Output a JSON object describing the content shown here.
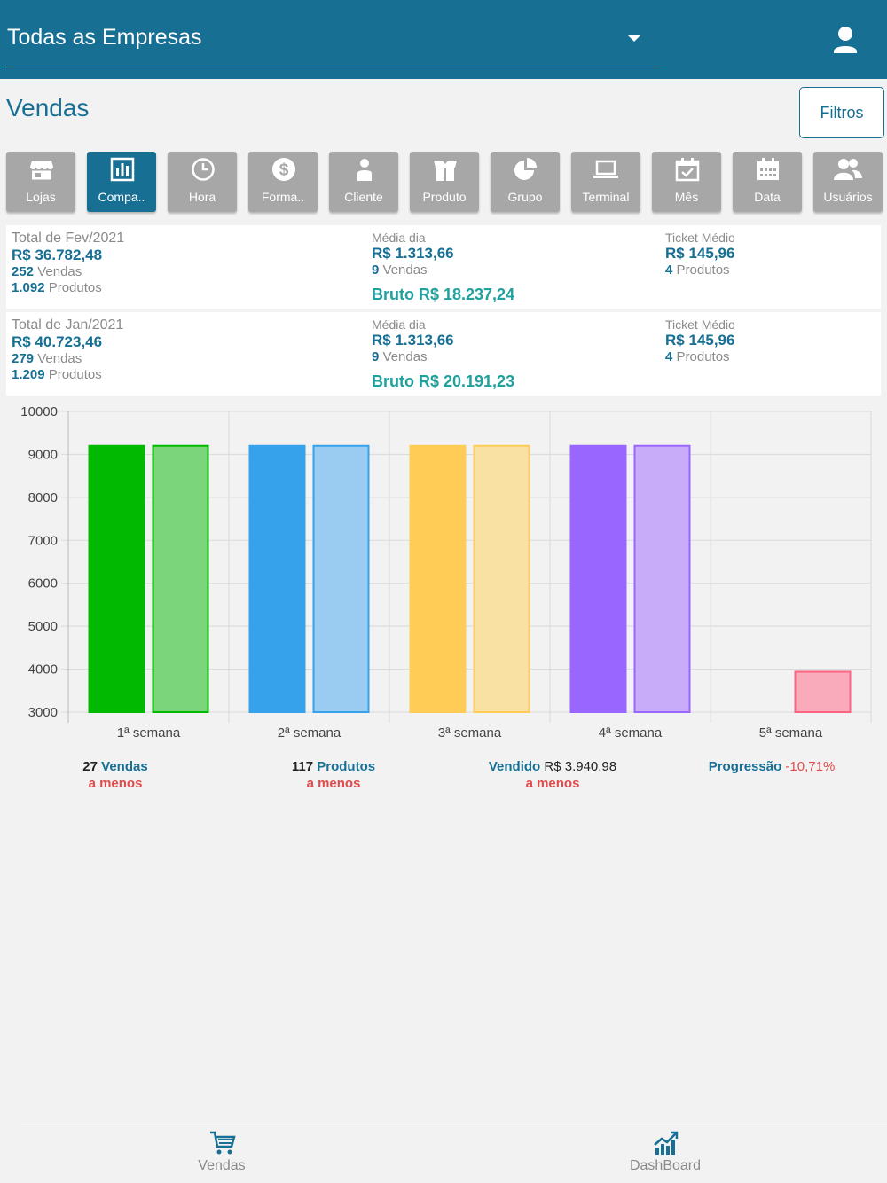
{
  "header": {
    "company": "Todas as Empresas",
    "icons": {
      "dropdown": "caret-down-icon",
      "user": "user-icon"
    },
    "colors": {
      "primary": "#176f94",
      "tab_inactive": "#a7a7a7",
      "accent_green": "#20a19d",
      "negative": "#e14b4b"
    }
  },
  "page": {
    "title": "Vendas",
    "filters_label": "Filtros"
  },
  "tabs": [
    {
      "label": "Lojas",
      "icon": "store-icon",
      "active": false
    },
    {
      "label": "Compa..",
      "icon": "bar-chart-icon",
      "active": true
    },
    {
      "label": "Hora",
      "icon": "clock-icon",
      "active": false
    },
    {
      "label": "Forma..",
      "icon": "dollar-icon",
      "active": false
    },
    {
      "label": "Cliente",
      "icon": "person-icon",
      "active": false
    },
    {
      "label": "Produto",
      "icon": "box-icon",
      "active": false
    },
    {
      "label": "Grupo",
      "icon": "pie-chart-icon",
      "active": false
    },
    {
      "label": "Terminal",
      "icon": "laptop-icon",
      "active": false
    },
    {
      "label": "Mês",
      "icon": "calendar-check-icon",
      "active": false
    },
    {
      "label": "Data",
      "icon": "calendar-icon",
      "active": false
    },
    {
      "label": "Usuários",
      "icon": "users-icon",
      "active": false
    }
  ],
  "summaries": [
    {
      "title": "Total de Fev/2021",
      "total": "R$ 36.782,48",
      "vendas_count": "252",
      "vendas_label": "Vendas",
      "produtos_count": "1.092",
      "produtos_label": "Produtos",
      "media_label": "Média dia",
      "media_value": "R$ 1.313,66",
      "media_vendas_count": "9",
      "media_vendas_label": "Vendas",
      "bruto": "Bruto R$ 18.237,24",
      "ticket_label": "Ticket Médio",
      "ticket_value": "R$ 145,96",
      "ticket_produtos_count": "4",
      "ticket_produtos_label": "Produtos"
    },
    {
      "title": "Total de Jan/2021",
      "total": "R$ 40.723,46",
      "vendas_count": "279",
      "vendas_label": "Vendas",
      "produtos_count": "1.209",
      "produtos_label": "Produtos",
      "media_label": "Média dia",
      "media_value": "R$ 1.313,66",
      "media_vendas_count": "9",
      "media_vendas_label": "Vendas",
      "bruto": "Bruto R$ 20.191,23",
      "ticket_label": "Ticket Médio",
      "ticket_value": "R$ 145,96",
      "ticket_produtos_count": "4",
      "ticket_produtos_label": "Produtos"
    }
  ],
  "chart_data": {
    "type": "bar",
    "categories": [
      "1ª semana",
      "2ª semana",
      "3ª semana",
      "4ª semana",
      "5ª semana"
    ],
    "series": [
      {
        "values": [
          9200,
          9200,
          9200,
          9200,
          null
        ]
      },
      {
        "values": [
          9200,
          9200,
          9200,
          9200,
          3940
        ]
      }
    ],
    "bar_colors": [
      [
        "#00b900",
        "#7bd67b"
      ],
      [
        "#36a2eb",
        "#9acbf0"
      ],
      [
        "#ffcd56",
        "#f9e0a3"
      ],
      [
        "#9966ff",
        "#c9acf9"
      ],
      [
        "#ff6384",
        "#f9abbb"
      ]
    ],
    "ylim": [
      3000,
      10000
    ],
    "yticks": [
      "10000",
      "9000",
      "8000",
      "7000",
      "6000",
      "5000",
      "4000",
      "3000"
    ],
    "grid": true,
    "title": "",
    "xlabel": "",
    "ylabel": ""
  },
  "stats": [
    {
      "num": "27",
      "word": "Vendas",
      "less": "a menos"
    },
    {
      "num": "117",
      "word": "Produtos",
      "less": "a menos"
    },
    {
      "word": "Vendido",
      "num": "R$ 3.940,98",
      "less": "a menos"
    },
    {
      "word": "Progressão",
      "num": "-10,71%"
    }
  ],
  "bottom_nav": [
    {
      "label": "Vendas",
      "icon": "cart-icon"
    },
    {
      "label": "DashBoard",
      "icon": "dashboard-chart-icon"
    }
  ]
}
